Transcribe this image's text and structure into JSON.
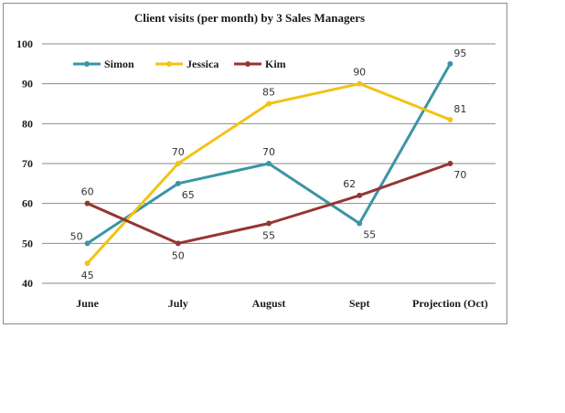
{
  "chart_data": {
    "type": "line",
    "title": "Client visits (per month) by 3 Sales Managers",
    "categories": [
      "June",
      "July",
      "August",
      "Sept",
      "Projection (Oct)"
    ],
    "series": [
      {
        "name": "Simon",
        "values": [
          50,
          65,
          70,
          55,
          95
        ],
        "color": "#3b95a5",
        "label_pos": [
          "left",
          "below-right",
          "above",
          "below-right",
          "above-right"
        ]
      },
      {
        "name": "Jessica",
        "values": [
          45,
          70,
          85,
          90,
          81
        ],
        "color": "#f2c314",
        "label_pos": [
          "below",
          "above",
          "above",
          "above",
          "above-right"
        ]
      },
      {
        "name": "Kim",
        "values": [
          60,
          50,
          55,
          62,
          70
        ],
        "color": "#943632",
        "label_pos": [
          "above",
          "below",
          "below",
          "above-left",
          "below-right"
        ]
      }
    ],
    "ylim": [
      40,
      100
    ],
    "yticks": [
      "40",
      "50",
      "60",
      "70",
      "80",
      "90",
      "100"
    ],
    "grid": true,
    "legend_position": "top-left",
    "xlabel": "",
    "ylabel": ""
  }
}
